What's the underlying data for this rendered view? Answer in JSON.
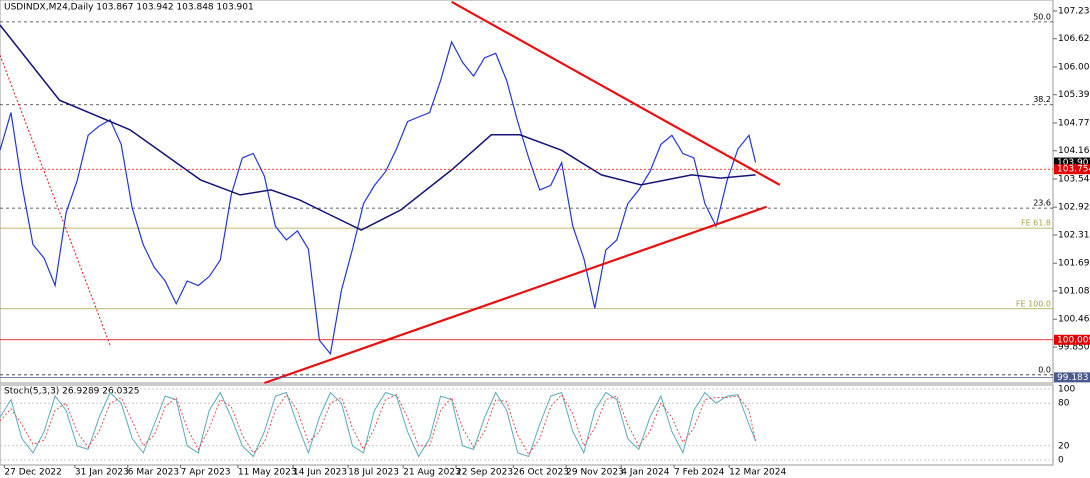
{
  "chart_data": {
    "type": "line",
    "title": "USDINDX,M24,Daily  103.867 103.942 103.848 103.901",
    "x": [
      0,
      5,
      10,
      15,
      20,
      25,
      30,
      35,
      40,
      45,
      50,
      55,
      60,
      65,
      70,
      75,
      80,
      85,
      90,
      95,
      100,
      105,
      110,
      115,
      120,
      125,
      130,
      135,
      140,
      145,
      150,
      155,
      160,
      165,
      170,
      175,
      180,
      185,
      190,
      195,
      200,
      205,
      210,
      215,
      220,
      225,
      230,
      235,
      240,
      245,
      250,
      255,
      260,
      265,
      270,
      275,
      280,
      285,
      290,
      295,
      300,
      305,
      310,
      315,
      320,
      325,
      330,
      335,
      340,
      343
    ],
    "series": [
      {
        "color": "#2336d8",
        "values": [
          104.17,
          105.0,
          103.4,
          102.1,
          101.8,
          101.2,
          102.8,
          103.5,
          104.5,
          104.7,
          104.84,
          104.3,
          102.9,
          102.1,
          101.6,
          101.3,
          100.8,
          101.3,
          101.2,
          101.4,
          101.76,
          103.2,
          104.0,
          104.1,
          103.6,
          102.5,
          102.2,
          102.4,
          102.0,
          100.0,
          99.7,
          101.1,
          102.0,
          103.0,
          103.4,
          103.7,
          104.2,
          104.8,
          104.9,
          105.0,
          105.7,
          106.55,
          106.1,
          105.8,
          106.2,
          106.3,
          105.7,
          104.8,
          104.0,
          103.3,
          103.4,
          103.9,
          102.5,
          101.8,
          100.7,
          101.98,
          102.2,
          103.0,
          103.3,
          103.7,
          104.3,
          104.5,
          104.1,
          104.0,
          103.0,
          102.5,
          103.5,
          104.2,
          104.5,
          103.901
        ]
      },
      {
        "color": "#141478",
        "x": [
          0,
          27,
          59,
          91,
          109,
          123,
          136,
          150,
          164,
          182,
          205,
          223,
          236,
          255,
          273,
          291,
          314,
          327,
          343
        ],
        "values": [
          106.92,
          105.27,
          104.62,
          103.52,
          103.19,
          103.3,
          103.08,
          102.75,
          102.42,
          102.86,
          103.74,
          104.51,
          104.51,
          104.17,
          103.63,
          103.41,
          103.63,
          103.56,
          103.63
        ]
      }
    ],
    "xlim": [
      0,
      478
    ],
    "xticks": [
      {
        "value": 2,
        "label": "27 Dec 2022"
      },
      {
        "value": 34,
        "label": "31 Jan 2023"
      },
      {
        "value": 58,
        "label": "6 Mar 2023"
      },
      {
        "value": 82,
        "label": "7 Apr 2023"
      },
      {
        "value": 108,
        "label": "11 May 2023"
      },
      {
        "value": 133,
        "label": "14 Jun 2023"
      },
      {
        "value": 158,
        "label": "18 Jul 2023"
      },
      {
        "value": 183,
        "label": "21 Aug 2023"
      },
      {
        "value": 207,
        "label": "22 Sep 2023"
      },
      {
        "value": 233,
        "label": "26 Oct 2023"
      },
      {
        "value": 257,
        "label": "29 Nov 2023"
      },
      {
        "value": 282,
        "label": "4 Jan 2024"
      },
      {
        "value": 306,
        "label": "7 Feb 2024"
      },
      {
        "value": 331,
        "label": "12 Mar 2024"
      }
    ],
    "ylim": [
      99.06,
      107.47
    ],
    "yticks": [
      {
        "value": 107.23,
        "label": "107.230"
      },
      {
        "value": 106.62,
        "label": "106.620"
      },
      {
        "value": 106,
        "label": "106.000"
      },
      {
        "value": 105.39,
        "label": "105.390"
      },
      {
        "value": 104.77,
        "label": "104.770"
      },
      {
        "value": 104.16,
        "label": "104.160"
      },
      {
        "value": 103.54,
        "label": "103.540"
      },
      {
        "value": 102.92,
        "label": "102.920"
      },
      {
        "value": 102.31,
        "label": "102.310"
      },
      {
        "value": 101.69,
        "label": "101.690"
      },
      {
        "value": 101.08,
        "label": "101.080"
      },
      {
        "value": 100.46,
        "label": "100.460"
      },
      {
        "value": 99.85,
        "label": "99.850"
      }
    ],
    "levels": [
      {
        "label": "50.0",
        "value": 106.99,
        "color": "#333333",
        "style": "dashed"
      },
      {
        "label": "38.2",
        "value": 105.17,
        "color": "#333333",
        "style": "dashed"
      },
      {
        "label": "23.6",
        "value": 102.9,
        "color": "#333333",
        "style": "dashed"
      },
      {
        "label": "FE 61.8",
        "value": 102.46,
        "color": "#a8a040",
        "style": "solid"
      },
      {
        "label": "FE 100.0",
        "value": 100.69,
        "color": "#a8a040",
        "style": "solid"
      },
      {
        "label": "0.0",
        "value": 99.24,
        "color": "#333333",
        "style": "dashed"
      }
    ],
    "price_tags": [
      {
        "value": 103.901,
        "color": "#000000",
        "line": "none"
      },
      {
        "value": 103.754,
        "color": "#e00000",
        "line": "dotted"
      },
      {
        "value": 100.009,
        "color": "#e00000",
        "line": "solid"
      },
      {
        "value": 99.183,
        "color": "#4a5a8c",
        "line": "solid"
      }
    ],
    "trendlines": [
      {
        "x": [
          205,
          354
        ],
        "y": [
          107.43,
          103.41
        ],
        "color": "#e81010",
        "style": "solid"
      },
      {
        "x": [
          120,
          348
        ],
        "y": [
          99.06,
          102.93
        ],
        "color": "#e81010",
        "style": "solid"
      },
      {
        "x": [
          0,
          50
        ],
        "y": [
          106.26,
          99.89
        ],
        "color": "#e81010",
        "style": "dotted"
      }
    ],
    "stochastic": {
      "title": "Stoch(5,3,3) 26.9289 26.0325",
      "ylim": [
        -7,
        105.6
      ],
      "yticks": [
        0,
        20,
        80,
        100
      ],
      "main": {
        "color": "#5aaabb",
        "values": [
          60,
          85,
          30,
          10,
          40,
          90,
          70,
          20,
          15,
          60,
          95,
          80,
          30,
          10,
          50,
          90,
          85,
          20,
          10,
          70,
          95,
          60,
          20,
          5,
          40,
          90,
          95,
          50,
          10,
          60,
          95,
          80,
          20,
          10,
          70,
          95,
          90,
          40,
          5,
          30,
          90,
          85,
          20,
          15,
          60,
          95,
          70,
          10,
          5,
          50,
          90,
          95,
          40,
          10,
          70,
          95,
          85,
          30,
          15,
          60,
          90,
          40,
          10,
          70,
          95,
          80,
          90,
          92,
          50,
          27
        ]
      },
      "signal": {
        "color": "#e05050",
        "values": [
          55,
          72,
          50,
          22,
          28,
          70,
          80,
          40,
          18,
          40,
          80,
          88,
          55,
          20,
          35,
          75,
          88,
          45,
          15,
          45,
          85,
          75,
          35,
          10,
          25,
          70,
          92,
          70,
          25,
          40,
          80,
          88,
          45,
          15,
          45,
          85,
          92,
          60,
          20,
          20,
          70,
          88,
          45,
          18,
          40,
          85,
          82,
          35,
          8,
          30,
          75,
          92,
          65,
          20,
          45,
          85,
          90,
          50,
          20,
          40,
          80,
          60,
          25,
          45,
          85,
          88,
          88,
          90,
          70,
          26
        ]
      }
    }
  }
}
